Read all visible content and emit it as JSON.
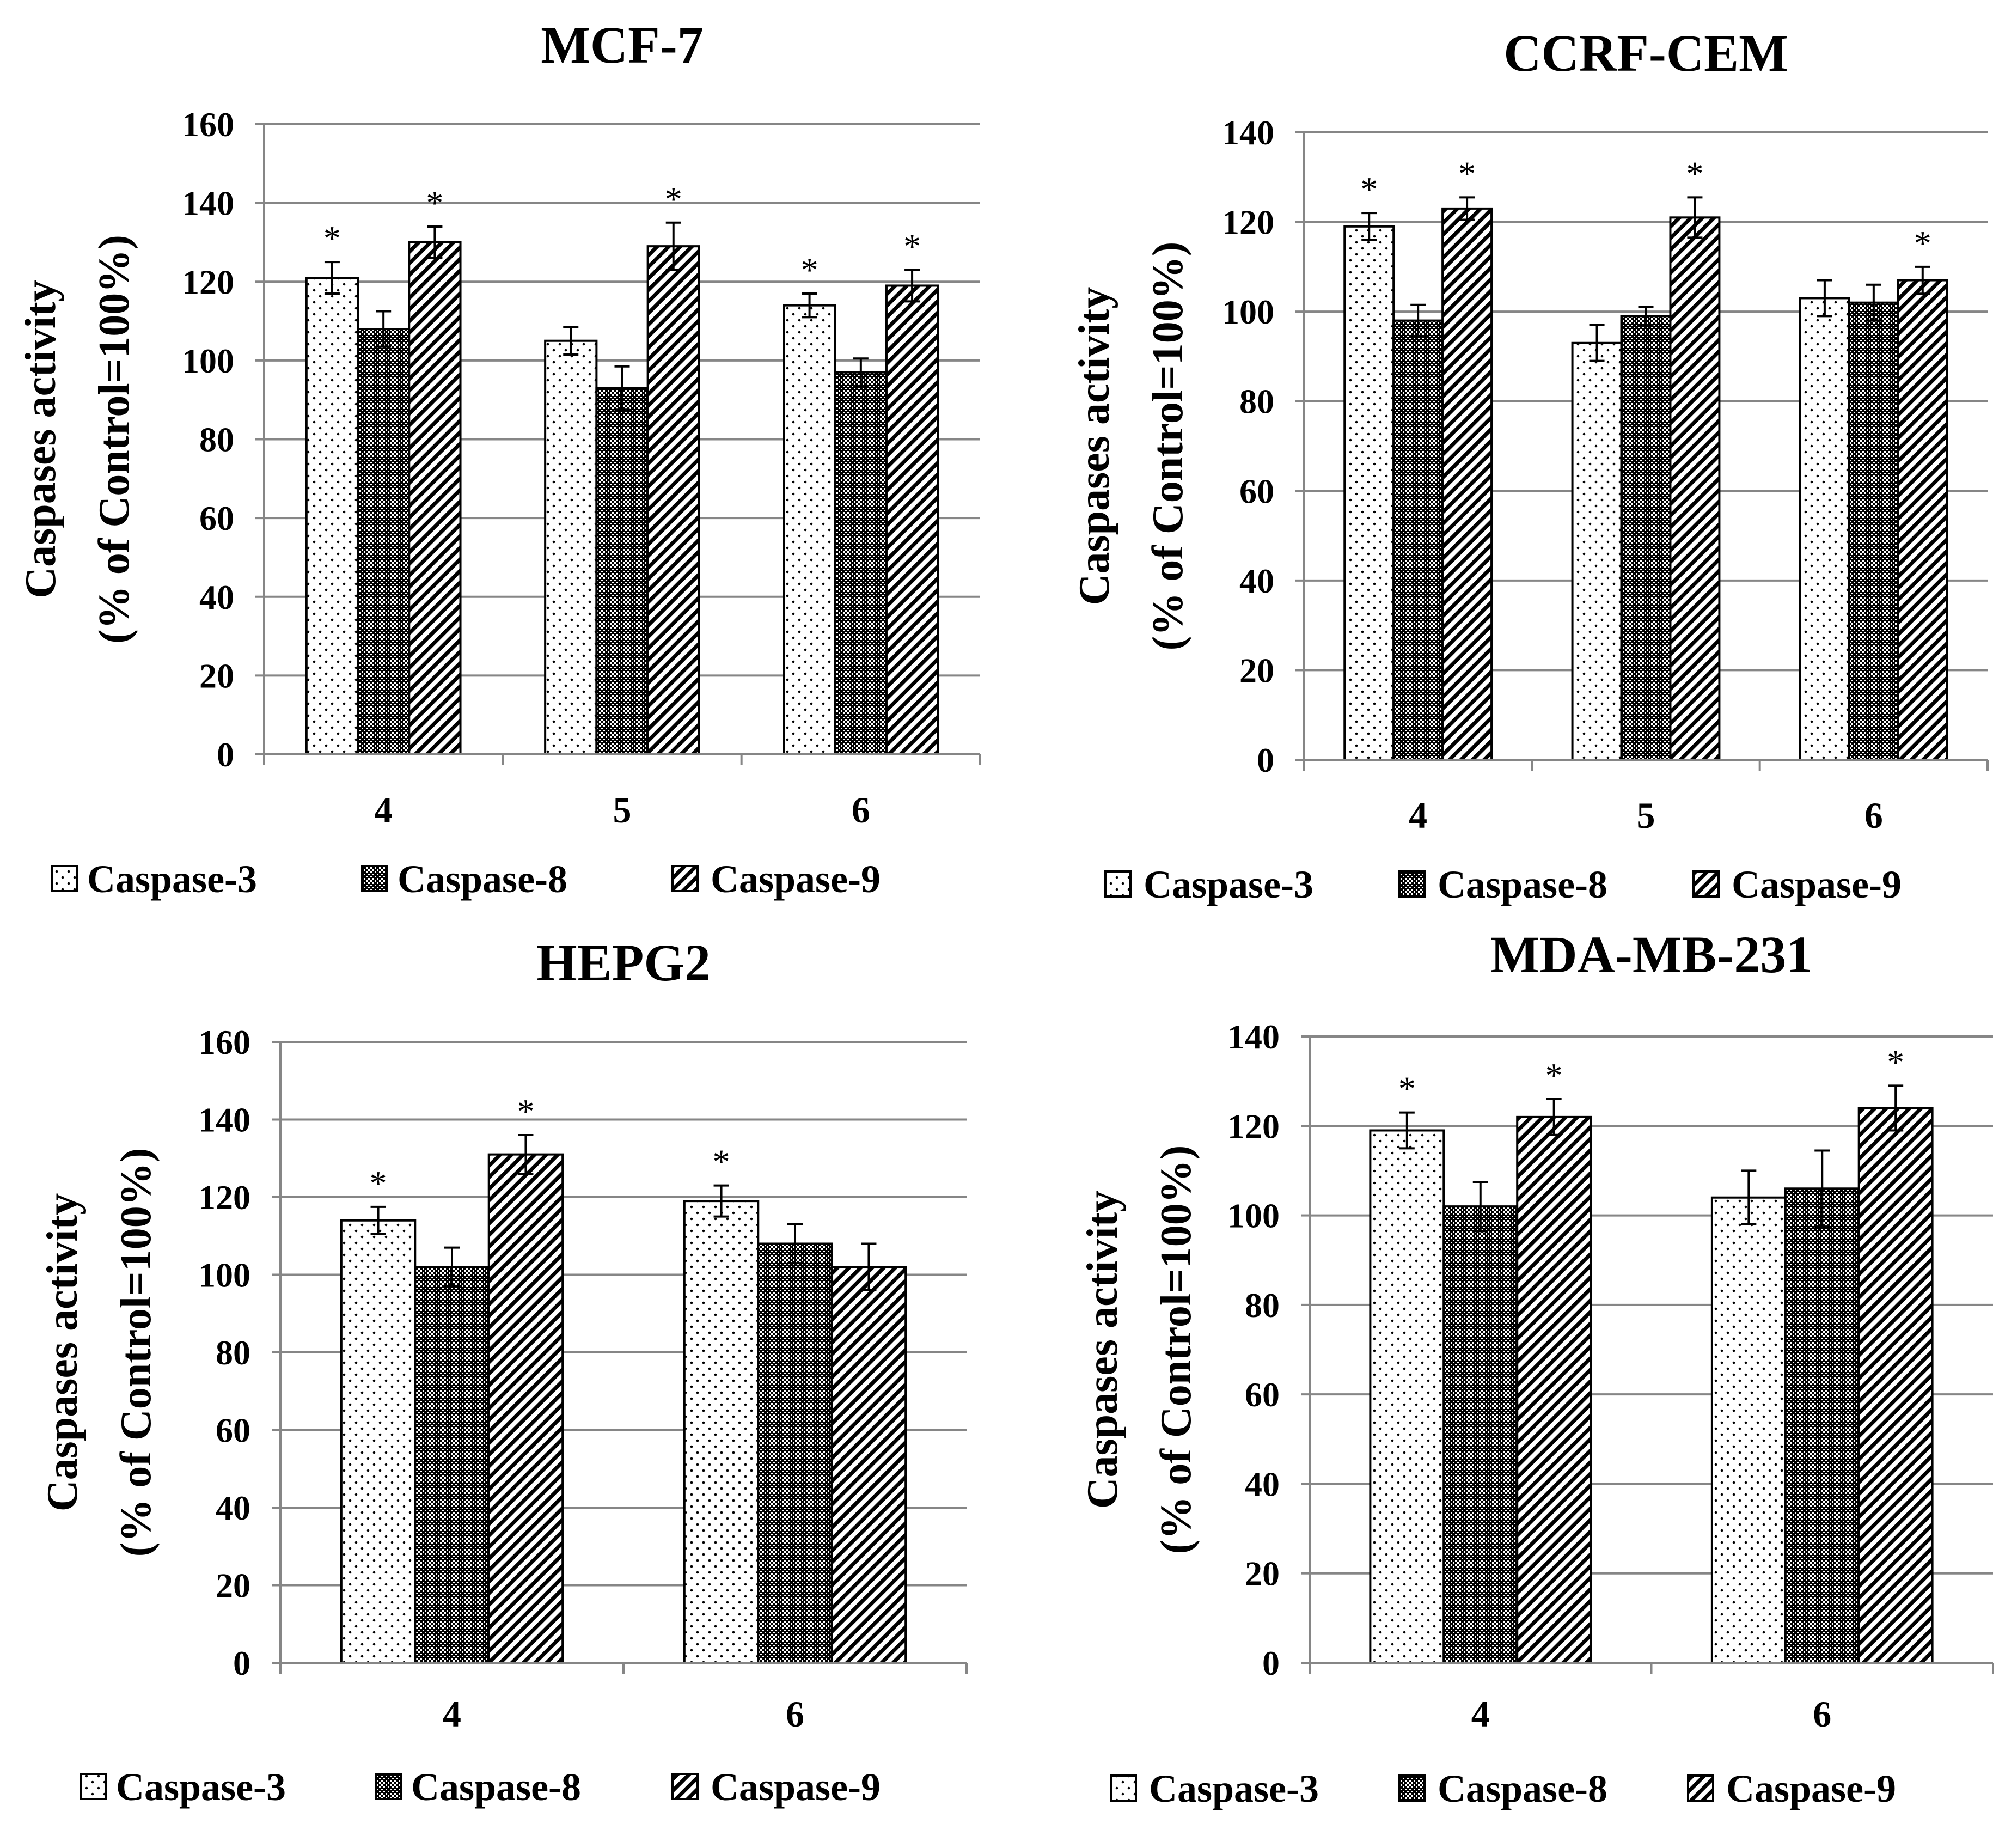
{
  "chart_data": [
    {
      "type": "bar",
      "title": "MCF-7",
      "xlabel": "",
      "ylabel": "Caspases activity",
      "ylabel2": "(% of Control=100%)",
      "categories": [
        "4",
        "5",
        "6"
      ],
      "ylim": [
        0,
        160
      ],
      "yticks": [
        0,
        20,
        40,
        60,
        80,
        100,
        120,
        140,
        160
      ],
      "grid": true,
      "legend_position": "bottom",
      "series": [
        {
          "name": "Caspase-3",
          "values": [
            121,
            105,
            114
          ],
          "errors": [
            4,
            3.5,
            3
          ],
          "significant": [
            true,
            false,
            true
          ]
        },
        {
          "name": "Caspase-8",
          "values": [
            108,
            93,
            97
          ],
          "errors": [
            4.5,
            5.5,
            3.5
          ],
          "significant": [
            false,
            false,
            false
          ]
        },
        {
          "name": "Caspase-9",
          "values": [
            130,
            129,
            119
          ],
          "errors": [
            4,
            6,
            4
          ],
          "significant": [
            true,
            true,
            true
          ]
        }
      ],
      "annotation": "*"
    },
    {
      "type": "bar",
      "title": "CCRF-CEM",
      "xlabel": "",
      "ylabel": "Caspases activity",
      "ylabel2": "(% of Control=100%)",
      "categories": [
        "4",
        "5",
        "6"
      ],
      "ylim": [
        0,
        140
      ],
      "yticks": [
        0,
        20,
        40,
        60,
        80,
        100,
        120,
        140
      ],
      "grid": true,
      "legend_position": "bottom",
      "series": [
        {
          "name": "Caspase-3",
          "values": [
            119,
            93,
            103
          ],
          "errors": [
            3,
            4,
            4
          ],
          "significant": [
            true,
            false,
            false
          ]
        },
        {
          "name": "Caspase-8",
          "values": [
            98,
            99,
            102
          ],
          "errors": [
            3.5,
            2,
            4
          ],
          "significant": [
            false,
            false,
            false
          ]
        },
        {
          "name": "Caspase-9",
          "values": [
            123,
            121,
            107
          ],
          "errors": [
            2.5,
            4.5,
            3
          ],
          "significant": [
            true,
            true,
            true
          ]
        }
      ],
      "annotation": "*"
    },
    {
      "type": "bar",
      "title": "HEPG2",
      "xlabel": "",
      "ylabel": "Caspases activity",
      "ylabel2": "(% of Control=100%)",
      "categories": [
        "4",
        "6"
      ],
      "ylim": [
        0,
        160
      ],
      "yticks": [
        0,
        20,
        40,
        60,
        80,
        100,
        120,
        140,
        160
      ],
      "grid": true,
      "legend_position": "bottom",
      "series": [
        {
          "name": "Caspase-3",
          "values": [
            114,
            119
          ],
          "errors": [
            3.5,
            4
          ],
          "significant": [
            true,
            true
          ]
        },
        {
          "name": "Caspase-8",
          "values": [
            102,
            108
          ],
          "errors": [
            5,
            5
          ],
          "significant": [
            false,
            false
          ]
        },
        {
          "name": "Caspase-9",
          "values": [
            131,
            102
          ],
          "errors": [
            5,
            6
          ],
          "significant": [
            true,
            false
          ]
        }
      ],
      "annotation": "*"
    },
    {
      "type": "bar",
      "title": "MDA-MB-231",
      "xlabel": "",
      "ylabel": "Caspases activity",
      "ylabel2": "(% of Control=100%)",
      "categories": [
        "4",
        "6"
      ],
      "ylim": [
        0,
        140
      ],
      "yticks": [
        0,
        20,
        40,
        60,
        80,
        100,
        120,
        140
      ],
      "grid": true,
      "legend_position": "bottom",
      "series": [
        {
          "name": "Caspase-3",
          "values": [
            119,
            104
          ],
          "errors": [
            4,
            6
          ],
          "significant": [
            true,
            false
          ]
        },
        {
          "name": "Caspase-8",
          "values": [
            102,
            106
          ],
          "errors": [
            5.5,
            8.5
          ],
          "significant": [
            false,
            false
          ]
        },
        {
          "name": "Caspase-9",
          "values": [
            122,
            124
          ],
          "errors": [
            4,
            5
          ],
          "significant": [
            true,
            true
          ]
        }
      ],
      "annotation": "*"
    }
  ]
}
